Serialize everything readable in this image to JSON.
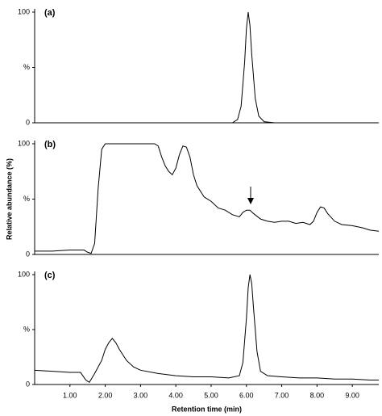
{
  "chart_data": [
    {
      "type": "line",
      "title": "(a)",
      "color": "#000000",
      "xlim": [
        0,
        9.75
      ],
      "ylim": [
        0,
        100
      ],
      "yticks": [
        0,
        {
          "value": 50,
          "label": "%"
        },
        100
      ],
      "x": [
        0,
        5.6,
        5.75,
        5.85,
        5.95,
        6.0,
        6.05,
        6.1,
        6.15,
        6.25,
        6.35,
        6.5,
        6.8,
        9.75
      ],
      "values": [
        0,
        0,
        3,
        15,
        55,
        85,
        100,
        88,
        62,
        22,
        6,
        1,
        0,
        0
      ]
    },
    {
      "type": "line",
      "title": "(b)",
      "ylabel": "Relative abundance (%)",
      "color": "#000000",
      "xlim": [
        0,
        9.75
      ],
      "ylim": [
        0,
        100
      ],
      "yticks": [
        0,
        {
          "value": 50,
          "label": "%"
        },
        100
      ],
      "x": [
        0,
        0.5,
        1.0,
        1.4,
        1.5,
        1.6,
        1.7,
        1.8,
        1.9,
        2.0,
        2.5,
        3.0,
        3.4,
        3.5,
        3.6,
        3.7,
        3.8,
        3.9,
        4.0,
        4.1,
        4.2,
        4.3,
        4.4,
        4.5,
        4.6,
        4.8,
        5.0,
        5.2,
        5.4,
        5.6,
        5.8,
        5.9,
        6.0,
        6.1,
        6.2,
        6.4,
        6.6,
        6.8,
        7.0,
        7.2,
        7.4,
        7.6,
        7.8,
        7.9,
        8.0,
        8.1,
        8.2,
        8.3,
        8.5,
        8.7,
        9.0,
        9.3,
        9.5,
        9.75
      ],
      "values": [
        3,
        3,
        4,
        4,
        2,
        1,
        10,
        60,
        95,
        100,
        100,
        100,
        100,
        98,
        88,
        80,
        75,
        72,
        78,
        90,
        98,
        97,
        88,
        72,
        62,
        52,
        48,
        42,
        40,
        36,
        34,
        38,
        40,
        40,
        37,
        32,
        30,
        29,
        30,
        30,
        28,
        29,
        27,
        30,
        38,
        43,
        42,
        37,
        30,
        27,
        26,
        24,
        22,
        21
      ]
    },
    {
      "type": "line",
      "title": "(c)",
      "xlabel": "Retention time (min)",
      "color": "#000000",
      "xlim": [
        0,
        9.75
      ],
      "ylim": [
        0,
        100
      ],
      "yticks": [
        0,
        {
          "value": 50,
          "label": "%"
        },
        100
      ],
      "xticks": [
        {
          "value": 1,
          "label": "1.00"
        },
        {
          "value": 2,
          "label": "2.00"
        },
        {
          "value": 3,
          "label": "3.00"
        },
        {
          "value": 4,
          "label": "4.00"
        },
        {
          "value": 5,
          "label": "5.00"
        },
        {
          "value": 6,
          "label": "6.00"
        },
        {
          "value": 7,
          "label": "7.00"
        },
        {
          "value": 8,
          "label": "8.00"
        },
        {
          "value": 9,
          "label": "9.00"
        }
      ],
      "x": [
        0,
        0.5,
        1.0,
        1.3,
        1.45,
        1.55,
        1.7,
        1.9,
        2.0,
        2.1,
        2.2,
        2.3,
        2.4,
        2.6,
        2.8,
        3.0,
        3.5,
        4.0,
        4.5,
        5.0,
        5.5,
        5.8,
        5.9,
        6.0,
        6.05,
        6.1,
        6.15,
        6.2,
        6.3,
        6.4,
        6.6,
        7.0,
        7.5,
        8.0,
        8.5,
        9.0,
        9.5,
        9.75
      ],
      "values": [
        13,
        12,
        11,
        11,
        4,
        2,
        10,
        22,
        32,
        38,
        42,
        38,
        32,
        22,
        16,
        13,
        10,
        8,
        7,
        7,
        6,
        8,
        20,
        60,
        88,
        100,
        92,
        70,
        30,
        12,
        8,
        7,
        6,
        6,
        5,
        5,
        4,
        4
      ]
    }
  ]
}
